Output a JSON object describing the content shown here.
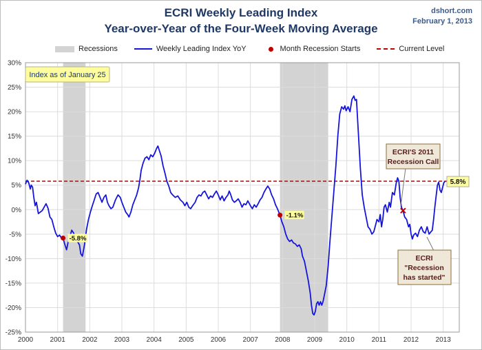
{
  "header": {
    "title": "ECRI Weekly Leading Index",
    "subtitle": "Year-over-Year of the Four-Week Moving Average",
    "source": "dshort.com",
    "date": "February 1, 2013"
  },
  "legend": {
    "recessions": "Recessions",
    "series": "Weekly Leading Index YoY",
    "recession_starts": "Month Recession Starts",
    "current": "Current Level"
  },
  "colors": {
    "series": "#1414dc",
    "recession": "#d3d3d3",
    "marker": "#c00000",
    "current_line": "#c00000",
    "callout_fill": "#fdfd9e",
    "note_fill": "#efe8d8"
  },
  "chart_data": {
    "type": "line",
    "title": "ECRI Weekly Leading Index",
    "subtitle": "Year-over-Year of the Four-Week Moving Average",
    "xlim": [
      2000,
      2013.5
    ],
    "ylim": [
      -25,
      30
    ],
    "x_ticks": [
      "2000",
      "2001",
      "2002",
      "2003",
      "2004",
      "2005",
      "2006",
      "2007",
      "2008",
      "2009",
      "2010",
      "2011",
      "2012",
      "2013"
    ],
    "y_ticks": [
      "30%",
      "25%",
      "20%",
      "15%",
      "10%",
      "5%",
      "0%",
      "-5%",
      "-10%",
      "-15%",
      "-20%",
      "-25%"
    ],
    "y_tick_values": [
      30,
      25,
      20,
      15,
      10,
      5,
      0,
      -5,
      -10,
      -15,
      -20,
      -25
    ],
    "grid": true,
    "legend_position": "top",
    "recessions": [
      {
        "start": 2001.17,
        "end": 2001.87
      },
      {
        "start": 2007.92,
        "end": 2009.42
      }
    ],
    "current_level": 5.8,
    "series": [
      {
        "name": "Weekly Leading Index YoY",
        "points": [
          [
            2000.0,
            5.2
          ],
          [
            2000.05,
            6.0
          ],
          [
            2000.1,
            5.5
          ],
          [
            2000.15,
            4.2
          ],
          [
            2000.18,
            5.0
          ],
          [
            2000.22,
            4.6
          ],
          [
            2000.26,
            2.5
          ],
          [
            2000.3,
            0.8
          ],
          [
            2000.34,
            1.5
          ],
          [
            2000.4,
            -0.8
          ],
          [
            2000.46,
            -0.5
          ],
          [
            2000.52,
            -0.2
          ],
          [
            2000.58,
            0.5
          ],
          [
            2000.64,
            1.2
          ],
          [
            2000.7,
            0.3
          ],
          [
            2000.76,
            -1.5
          ],
          [
            2000.82,
            -2.0
          ],
          [
            2000.88,
            -3.5
          ],
          [
            2000.94,
            -4.8
          ],
          [
            2001.0,
            -5.5
          ],
          [
            2001.06,
            -5.2
          ],
          [
            2001.12,
            -5.8
          ],
          [
            2001.17,
            -5.8
          ],
          [
            2001.22,
            -7.0
          ],
          [
            2001.28,
            -8.2
          ],
          [
            2001.33,
            -6.5
          ],
          [
            2001.38,
            -5.5
          ],
          [
            2001.44,
            -4.2
          ],
          [
            2001.5,
            -4.8
          ],
          [
            2001.56,
            -5.8
          ],
          [
            2001.62,
            -6.5
          ],
          [
            2001.68,
            -7.2
          ],
          [
            2001.72,
            -9.0
          ],
          [
            2001.77,
            -9.5
          ],
          [
            2001.8,
            -8.5
          ],
          [
            2001.84,
            -7.0
          ],
          [
            2001.9,
            -4.0
          ],
          [
            2001.96,
            -2.0
          ],
          [
            2002.02,
            -0.5
          ],
          [
            2002.08,
            0.8
          ],
          [
            2002.14,
            2.0
          ],
          [
            2002.2,
            3.2
          ],
          [
            2002.26,
            3.5
          ],
          [
            2002.32,
            2.5
          ],
          [
            2002.38,
            1.5
          ],
          [
            2002.44,
            2.5
          ],
          [
            2002.5,
            3.0
          ],
          [
            2002.55,
            1.5
          ],
          [
            2002.6,
            0.8
          ],
          [
            2002.66,
            0.2
          ],
          [
            2002.72,
            0.5
          ],
          [
            2002.8,
            2.0
          ],
          [
            2002.88,
            3.0
          ],
          [
            2002.95,
            2.5
          ],
          [
            2003.0,
            1.5
          ],
          [
            2003.06,
            0.5
          ],
          [
            2003.12,
            -0.5
          ],
          [
            2003.18,
            -1.0
          ],
          [
            2003.22,
            -1.5
          ],
          [
            2003.28,
            -0.5
          ],
          [
            2003.34,
            1.0
          ],
          [
            2003.4,
            2.0
          ],
          [
            2003.46,
            3.0
          ],
          [
            2003.52,
            4.5
          ],
          [
            2003.56,
            6.0
          ],
          [
            2003.6,
            8.0
          ],
          [
            2003.66,
            9.5
          ],
          [
            2003.72,
            10.5
          ],
          [
            2003.78,
            10.8
          ],
          [
            2003.84,
            10.2
          ],
          [
            2003.9,
            11.2
          ],
          [
            2003.96,
            10.8
          ],
          [
            2004.02,
            11.5
          ],
          [
            2004.08,
            12.5
          ],
          [
            2004.12,
            13.0
          ],
          [
            2004.16,
            12.2
          ],
          [
            2004.22,
            11.0
          ],
          [
            2004.28,
            9.0
          ],
          [
            2004.34,
            7.5
          ],
          [
            2004.4,
            5.8
          ],
          [
            2004.46,
            4.8
          ],
          [
            2004.52,
            3.5
          ],
          [
            2004.58,
            3.0
          ],
          [
            2004.66,
            2.5
          ],
          [
            2004.74,
            2.8
          ],
          [
            2004.82,
            2.0
          ],
          [
            2004.9,
            1.5
          ],
          [
            2004.96,
            0.8
          ],
          [
            2005.02,
            1.5
          ],
          [
            2005.08,
            0.5
          ],
          [
            2005.14,
            0.2
          ],
          [
            2005.2,
            0.8
          ],
          [
            2005.28,
            1.5
          ],
          [
            2005.34,
            2.5
          ],
          [
            2005.4,
            3.0
          ],
          [
            2005.46,
            2.8
          ],
          [
            2005.52,
            3.5
          ],
          [
            2005.58,
            3.8
          ],
          [
            2005.64,
            3.0
          ],
          [
            2005.7,
            2.2
          ],
          [
            2005.76,
            2.8
          ],
          [
            2005.82,
            2.5
          ],
          [
            2005.88,
            3.2
          ],
          [
            2005.94,
            3.8
          ],
          [
            2006.0,
            3.0
          ],
          [
            2006.06,
            2.0
          ],
          [
            2006.12,
            2.8
          ],
          [
            2006.18,
            1.8
          ],
          [
            2006.24,
            2.5
          ],
          [
            2006.3,
            3.0
          ],
          [
            2006.34,
            3.8
          ],
          [
            2006.38,
            3.2
          ],
          [
            2006.44,
            2.0
          ],
          [
            2006.5,
            1.5
          ],
          [
            2006.56,
            1.8
          ],
          [
            2006.62,
            2.2
          ],
          [
            2006.68,
            1.5
          ],
          [
            2006.74,
            0.5
          ],
          [
            2006.8,
            1.2
          ],
          [
            2006.86,
            1.0
          ],
          [
            2006.92,
            1.8
          ],
          [
            2007.0,
            0.8
          ],
          [
            2007.06,
            0.2
          ],
          [
            2007.12,
            1.0
          ],
          [
            2007.18,
            0.5
          ],
          [
            2007.24,
            1.2
          ],
          [
            2007.3,
            2.0
          ],
          [
            2007.36,
            2.5
          ],
          [
            2007.42,
            3.5
          ],
          [
            2007.48,
            4.2
          ],
          [
            2007.54,
            4.8
          ],
          [
            2007.6,
            4.2
          ],
          [
            2007.66,
            3.0
          ],
          [
            2007.72,
            2.2
          ],
          [
            2007.78,
            1.0
          ],
          [
            2007.84,
            0.2
          ],
          [
            2007.92,
            -1.1
          ],
          [
            2007.98,
            -2.5
          ],
          [
            2008.04,
            -3.5
          ],
          [
            2008.1,
            -5.0
          ],
          [
            2008.16,
            -6.0
          ],
          [
            2008.22,
            -6.5
          ],
          [
            2008.28,
            -6.2
          ],
          [
            2008.34,
            -6.8
          ],
          [
            2008.4,
            -7.0
          ],
          [
            2008.46,
            -7.5
          ],
          [
            2008.52,
            -7.2
          ],
          [
            2008.58,
            -8.0
          ],
          [
            2008.62,
            -9.5
          ],
          [
            2008.68,
            -10.5
          ],
          [
            2008.74,
            -12.5
          ],
          [
            2008.8,
            -14.5
          ],
          [
            2008.86,
            -17.0
          ],
          [
            2008.9,
            -19.5
          ],
          [
            2008.94,
            -21.2
          ],
          [
            2008.98,
            -21.5
          ],
          [
            2009.02,
            -20.8
          ],
          [
            2009.06,
            -19.2
          ],
          [
            2009.1,
            -18.8
          ],
          [
            2009.14,
            -19.5
          ],
          [
            2009.18,
            -18.8
          ],
          [
            2009.22,
            -19.5
          ],
          [
            2009.26,
            -18.8
          ],
          [
            2009.3,
            -17.5
          ],
          [
            2009.36,
            -15.5
          ],
          [
            2009.42,
            -11.5
          ],
          [
            2009.48,
            -6.0
          ],
          [
            2009.54,
            -1.0
          ],
          [
            2009.6,
            4.0
          ],
          [
            2009.66,
            9.0
          ],
          [
            2009.72,
            15.0
          ],
          [
            2009.78,
            19.5
          ],
          [
            2009.84,
            21.0
          ],
          [
            2009.9,
            20.5
          ],
          [
            2009.94,
            21.2
          ],
          [
            2009.98,
            20.2
          ],
          [
            2010.04,
            21.0
          ],
          [
            2010.1,
            20.0
          ],
          [
            2010.16,
            22.5
          ],
          [
            2010.22,
            23.2
          ],
          [
            2010.26,
            22.3
          ],
          [
            2010.3,
            22.5
          ],
          [
            2010.36,
            15.5
          ],
          [
            2010.42,
            8.5
          ],
          [
            2010.48,
            3.0
          ],
          [
            2010.54,
            0.5
          ],
          [
            2010.6,
            -1.5
          ],
          [
            2010.66,
            -3.5
          ],
          [
            2010.72,
            -4.0
          ],
          [
            2010.78,
            -5.0
          ],
          [
            2010.84,
            -4.5
          ],
          [
            2010.9,
            -3.0
          ],
          [
            2010.94,
            -2.0
          ],
          [
            2011.0,
            -2.5
          ],
          [
            2011.04,
            -1.0
          ],
          [
            2011.08,
            -3.5
          ],
          [
            2011.12,
            -2.0
          ],
          [
            2011.16,
            0.5
          ],
          [
            2011.2,
            1.0
          ],
          [
            2011.26,
            -0.5
          ],
          [
            2011.32,
            1.5
          ],
          [
            2011.36,
            0.5
          ],
          [
            2011.42,
            3.5
          ],
          [
            2011.48,
            3.0
          ],
          [
            2011.54,
            5.5
          ],
          [
            2011.58,
            6.5
          ],
          [
            2011.62,
            5.8
          ],
          [
            2011.66,
            2.5
          ],
          [
            2011.7,
            0.5
          ],
          [
            2011.75,
            -0.2
          ],
          [
            2011.8,
            -1.5
          ],
          [
            2011.86,
            -2.0
          ],
          [
            2011.92,
            -3.5
          ],
          [
            2011.96,
            -3.0
          ],
          [
            2012.0,
            -5.0
          ],
          [
            2012.04,
            -6.0
          ],
          [
            2012.08,
            -5.2
          ],
          [
            2012.14,
            -4.8
          ],
          [
            2012.2,
            -5.5
          ],
          [
            2012.26,
            -4.2
          ],
          [
            2012.32,
            -3.5
          ],
          [
            2012.38,
            -4.5
          ],
          [
            2012.44,
            -4.8
          ],
          [
            2012.5,
            -3.5
          ],
          [
            2012.56,
            -5.0
          ],
          [
            2012.62,
            -4.5
          ],
          [
            2012.66,
            -4.2
          ],
          [
            2012.7,
            -2.0
          ],
          [
            2012.74,
            0.5
          ],
          [
            2012.78,
            2.8
          ],
          [
            2012.82,
            5.0
          ],
          [
            2012.86,
            5.6
          ],
          [
            2012.9,
            4.0
          ],
          [
            2012.94,
            3.5
          ],
          [
            2012.98,
            4.5
          ],
          [
            2013.02,
            5.5
          ],
          [
            2013.06,
            5.8
          ]
        ]
      }
    ],
    "recession_start_markers": [
      {
        "x": 2001.17,
        "y": -5.8,
        "label": "-5.8%"
      },
      {
        "x": 2007.92,
        "y": -1.1,
        "label": "-1.1%"
      }
    ],
    "ecri_call_marker": {
      "x": 2011.75,
      "y": -0.2
    },
    "current_label": "5.8%",
    "annotations": {
      "index_date": "Index as of January 25",
      "ecri_call_line1": "ECRI'S 2011",
      "ecri_call_line2": "Recession Call",
      "ecri_started_line1": "ECRI",
      "ecri_started_line2": "\"Recession",
      "ecri_started_line3": "has started\""
    }
  }
}
